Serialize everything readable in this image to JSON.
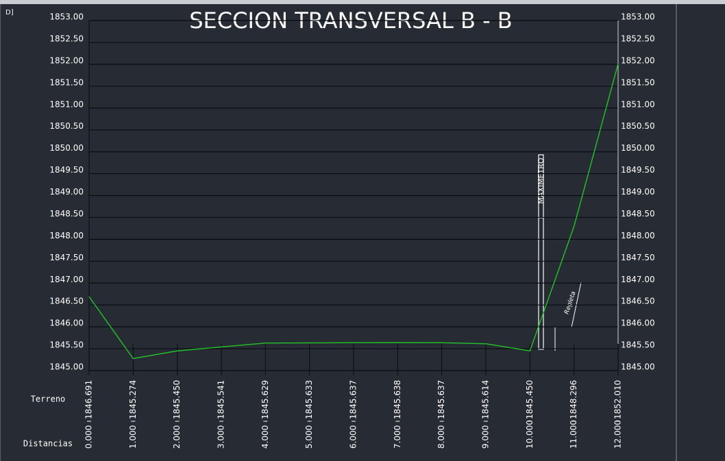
{
  "chart_data": {
    "type": "line",
    "corner_label": "D]",
    "title": "SECCION TRANSVERSAL B - B",
    "x_label": "Distancias",
    "xlim": [
      0,
      12
    ],
    "xticks": [
      {
        "value": 0,
        "label": "0.000"
      },
      {
        "value": 1,
        "label": "1.000"
      },
      {
        "value": 2,
        "label": "2.000"
      },
      {
        "value": 3,
        "label": "3.000"
      },
      {
        "value": 4,
        "label": "4.000"
      },
      {
        "value": 5,
        "label": "5.000"
      },
      {
        "value": 6,
        "label": "6.000"
      },
      {
        "value": 7,
        "label": "7.000"
      },
      {
        "value": 8,
        "label": "8.000"
      },
      {
        "value": 9,
        "label": "9.000"
      },
      {
        "value": 10,
        "label": "10.000"
      },
      {
        "value": 11,
        "label": "11.000"
      },
      {
        "value": 12,
        "label": "12.000"
      }
    ],
    "ylim": [
      1845,
      1853
    ],
    "yticks": [
      {
        "value": 1845,
        "label": "1845.00"
      },
      {
        "value": 1845.5,
        "label": "1845.50"
      },
      {
        "value": 1846,
        "label": "1846.00"
      },
      {
        "value": 1846.5,
        "label": "1846.50"
      },
      {
        "value": 1847,
        "label": "1847.00"
      },
      {
        "value": 1847.5,
        "label": "1847.50"
      },
      {
        "value": 1848,
        "label": "1848.00"
      },
      {
        "value": 1848.5,
        "label": "1848.50"
      },
      {
        "value": 1849,
        "label": "1849.00"
      },
      {
        "value": 1849.5,
        "label": "1849.50"
      },
      {
        "value": 1850,
        "label": "1850.00"
      },
      {
        "value": 1850.5,
        "label": "1850.50"
      },
      {
        "value": 1851,
        "label": "1851.00"
      },
      {
        "value": 1851.5,
        "label": "1851.50"
      },
      {
        "value": 1852,
        "label": "1852.00"
      },
      {
        "value": 1852.5,
        "label": "1852.50"
      },
      {
        "value": 1853,
        "label": "1853.00"
      }
    ],
    "grid": true,
    "series": [
      {
        "name": "Terreno",
        "color": "#22c42a",
        "x": [
          0,
          1,
          2,
          3,
          4,
          5,
          6,
          7,
          8,
          9,
          10,
          11,
          12
        ],
        "values": [
          1846.691,
          1845.274,
          1845.45,
          1845.541,
          1845.629,
          1845.633,
          1845.637,
          1845.638,
          1845.637,
          1845.614,
          1845.45,
          1848.296,
          1852.01
        ],
        "value_labels": [
          "1846.691",
          "1845.274",
          "1845.450",
          "1845.541",
          "1845.629",
          "1845.633",
          "1845.637",
          "1845.638",
          "1845.637",
          "1845.614",
          "1845.450",
          "1848.296",
          "1852.010"
        ]
      }
    ],
    "annotations": [
      "MAXIMETRO",
      "Regleta"
    ]
  }
}
